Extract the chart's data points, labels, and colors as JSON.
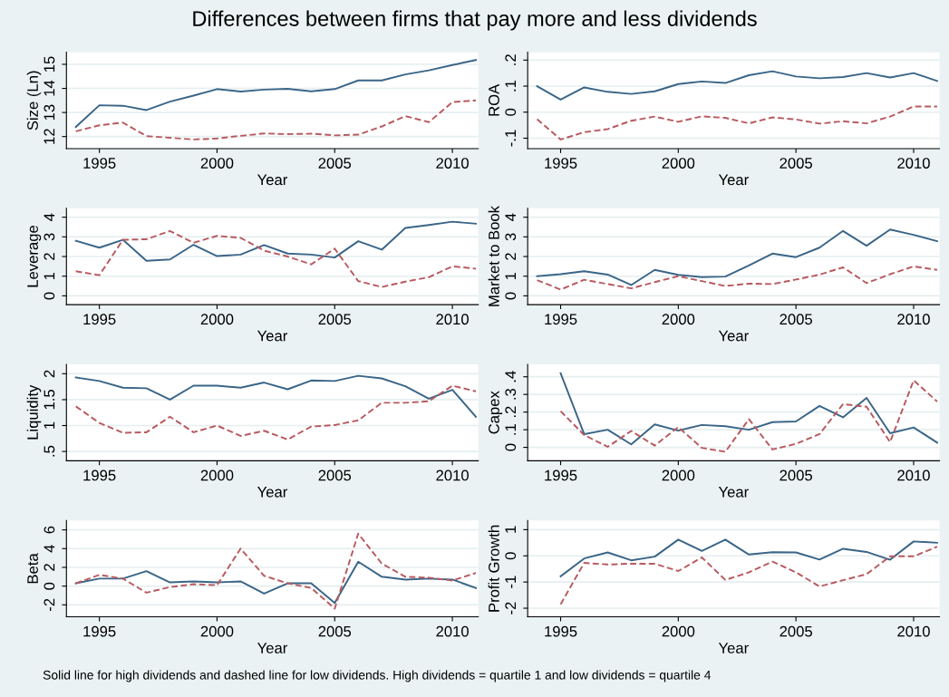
{
  "chart_data": [
    {
      "type": "line",
      "title": "Differences between firms that pay more and less dividends",
      "xlabel": "Year",
      "ylabel": "Size (Ln)",
      "x": [
        1994,
        1995,
        1996,
        1997,
        1998,
        1999,
        2000,
        2001,
        2002,
        2003,
        2004,
        2005,
        2006,
        2007,
        2008,
        2009,
        2010,
        2011
      ],
      "xlim": [
        1993.6,
        2011.1
      ],
      "xticks": [
        1995,
        2000,
        2005,
        2010
      ],
      "ylim": [
        11.5,
        15.5
      ],
      "yticks": [
        12,
        13,
        14,
        15
      ],
      "grid": "y",
      "series": [
        {
          "color": "#3a6587",
          "line_style": "solid",
          "values": [
            12.4,
            13.3,
            13.28,
            13.1,
            13.45,
            13.7,
            13.97,
            13.87,
            13.95,
            13.98,
            13.88,
            13.97,
            14.33,
            14.33,
            14.58,
            14.75,
            14.97,
            15.18
          ]
        },
        {
          "color": "#b85a5f",
          "line_style": "dashed",
          "values": [
            12.22,
            12.47,
            12.58,
            12.02,
            11.95,
            11.88,
            11.92,
            12.03,
            12.13,
            12.1,
            12.12,
            12.05,
            12.08,
            12.42,
            12.85,
            12.6,
            13.43,
            13.5
          ]
        }
      ]
    },
    {
      "type": "line",
      "xlabel": "Year",
      "ylabel": "ROA",
      "x": [
        1994,
        1995,
        1996,
        1997,
        1998,
        1999,
        2000,
        2001,
        2002,
        2003,
        2004,
        2005,
        2006,
        2007,
        2008,
        2009,
        2010,
        2011
      ],
      "xlim": [
        1993.6,
        2011.1
      ],
      "xticks": [
        1995,
        2000,
        2005,
        2010
      ],
      "ylim": [
        -0.14,
        0.23
      ],
      "yticks": [
        {
          "value": -0.1,
          "label": "-.1"
        },
        0,
        {
          "value": 0.1,
          "label": ".1"
        },
        {
          "value": 0.2,
          "label": ".2"
        }
      ],
      "grid": "y",
      "series": [
        {
          "color": "#3a6587",
          "line_style": "solid",
          "values": [
            0.1,
            0.048,
            0.095,
            0.078,
            0.07,
            0.08,
            0.108,
            0.118,
            0.112,
            0.142,
            0.157,
            0.137,
            0.13,
            0.135,
            0.15,
            0.133,
            0.15,
            0.12
          ]
        },
        {
          "color": "#b85a5f",
          "line_style": "dashed",
          "values": [
            -0.027,
            -0.105,
            -0.077,
            -0.065,
            -0.033,
            -0.017,
            -0.037,
            -0.016,
            -0.022,
            -0.043,
            -0.02,
            -0.028,
            -0.044,
            -0.035,
            -0.043,
            -0.017,
            0.022,
            0.022
          ]
        }
      ]
    },
    {
      "type": "line",
      "xlabel": "Year",
      "ylabel": "Leverage",
      "x": [
        1994,
        1995,
        1996,
        1997,
        1998,
        1999,
        2000,
        2001,
        2002,
        2003,
        2004,
        2005,
        2006,
        2007,
        2008,
        2009,
        2010,
        2011
      ],
      "xlim": [
        1993.6,
        2011.1
      ],
      "xticks": [
        1995,
        2000,
        2005,
        2010
      ],
      "ylim": [
        -0.45,
        4.45
      ],
      "yticks": [
        0,
        1,
        2,
        3,
        4
      ],
      "grid": "y",
      "series": [
        {
          "color": "#3a6587",
          "line_style": "solid",
          "values": [
            2.8,
            2.45,
            2.85,
            1.78,
            1.85,
            2.6,
            2.02,
            2.1,
            2.58,
            2.15,
            2.1,
            1.95,
            2.78,
            2.35,
            3.45,
            3.6,
            3.77,
            3.67
          ]
        },
        {
          "color": "#b85a5f",
          "line_style": "dashed",
          "values": [
            1.25,
            1.05,
            2.85,
            2.88,
            3.3,
            2.7,
            3.05,
            2.95,
            2.3,
            2.0,
            1.6,
            2.4,
            0.75,
            0.45,
            0.72,
            0.95,
            1.5,
            1.38
          ]
        }
      ]
    },
    {
      "type": "line",
      "xlabel": "Year",
      "ylabel": "Market to Book",
      "x": [
        1994,
        1995,
        1996,
        1997,
        1998,
        1999,
        2000,
        2001,
        2002,
        2003,
        2004,
        2005,
        2006,
        2007,
        2008,
        2009,
        2010,
        2011
      ],
      "xlim": [
        1993.6,
        2011.1
      ],
      "xticks": [
        1995,
        2000,
        2005,
        2010
      ],
      "ylim": [
        -0.45,
        4.45
      ],
      "yticks": [
        0,
        1,
        2,
        3,
        4
      ],
      "grid": "y",
      "series": [
        {
          "color": "#3a6587",
          "line_style": "solid",
          "values": [
            1.0,
            1.1,
            1.25,
            1.08,
            0.55,
            1.32,
            1.07,
            0.95,
            0.98,
            1.55,
            2.15,
            1.97,
            2.45,
            3.3,
            2.55,
            3.37,
            3.1,
            2.78
          ]
        },
        {
          "color": "#b85a5f",
          "line_style": "dashed",
          "values": [
            0.8,
            0.32,
            0.82,
            0.6,
            0.38,
            0.7,
            1.0,
            0.75,
            0.5,
            0.62,
            0.6,
            0.83,
            1.08,
            1.45,
            0.65,
            1.1,
            1.5,
            1.32
          ]
        }
      ]
    },
    {
      "type": "line",
      "xlabel": "Year",
      "ylabel": "Liquidity",
      "x": [
        1994,
        1995,
        1996,
        1997,
        1998,
        1999,
        2000,
        2001,
        2002,
        2003,
        2004,
        2005,
        2006,
        2007,
        2008,
        2009,
        2010,
        2011
      ],
      "xlim": [
        1993.6,
        2011.1
      ],
      "xticks": [
        1995,
        2000,
        2005,
        2010
      ],
      "ylim": [
        0.32,
        2.18
      ],
      "yticks": [
        {
          "value": 0.5,
          "label": ".5"
        },
        1,
        1.5,
        2
      ],
      "grid": "y",
      "series": [
        {
          "color": "#3a6587",
          "line_style": "solid",
          "values": [
            1.93,
            1.86,
            1.73,
            1.72,
            1.5,
            1.77,
            1.77,
            1.73,
            1.83,
            1.7,
            1.87,
            1.86,
            1.96,
            1.91,
            1.76,
            1.52,
            1.69,
            1.17
          ]
        },
        {
          "color": "#b85a5f",
          "line_style": "dashed",
          "values": [
            1.37,
            1.05,
            0.86,
            0.87,
            1.17,
            0.87,
            1.0,
            0.8,
            0.9,
            0.73,
            0.98,
            1.01,
            1.1,
            1.44,
            1.44,
            1.47,
            1.77,
            1.66
          ]
        }
      ]
    },
    {
      "type": "line",
      "xlabel": "Year",
      "ylabel": "Capex",
      "x": [
        1995,
        1996,
        1997,
        1998,
        1999,
        2000,
        2001,
        2002,
        2003,
        2004,
        2005,
        2006,
        2007,
        2008,
        2009,
        2010,
        2011
      ],
      "xlim": [
        1993.6,
        2011.1
      ],
      "xticks": [
        1995,
        2000,
        2005,
        2010
      ],
      "ylim": [
        -0.076,
        0.47
      ],
      "yticks": [
        0,
        {
          "value": 0.1,
          "label": ".1"
        },
        {
          "value": 0.2,
          "label": ".2"
        },
        {
          "value": 0.3,
          "label": ".3"
        },
        {
          "value": 0.4,
          "label": ".4"
        }
      ],
      "grid": "y",
      "series": [
        {
          "color": "#3a6587",
          "line_style": "solid",
          "values": [
            0.42,
            0.075,
            0.1,
            0.017,
            0.13,
            0.095,
            0.127,
            0.12,
            0.1,
            0.143,
            0.147,
            0.235,
            0.17,
            0.28,
            0.08,
            0.113,
            0.027
          ]
        },
        {
          "color": "#b85a5f",
          "line_style": "dashed",
          "values": [
            0.205,
            0.07,
            0.003,
            0.093,
            0.01,
            0.115,
            -0.003,
            -0.025,
            0.16,
            -0.012,
            0.02,
            0.075,
            0.245,
            0.23,
            0.03,
            0.38,
            0.26
          ]
        }
      ]
    },
    {
      "type": "line",
      "xlabel": "Year",
      "ylabel": "Beta",
      "x": [
        1994,
        1995,
        1996,
        1997,
        1998,
        1999,
        2000,
        2001,
        2002,
        2003,
        2004,
        2005,
        2006,
        2007,
        2008,
        2009,
        2010,
        2011
      ],
      "xlim": [
        1993.6,
        2011.1
      ],
      "xticks": [
        1995,
        2000,
        2005,
        2010
      ],
      "ylim": [
        -3.28,
        7.0
      ],
      "yticks": [
        -2,
        0,
        2,
        4,
        6
      ],
      "grid": "y",
      "series": [
        {
          "color": "#3a6587",
          "line_style": "solid",
          "values": [
            0.3,
            0.8,
            0.8,
            1.6,
            0.4,
            0.5,
            0.4,
            0.5,
            -0.8,
            0.3,
            0.3,
            -1.8,
            2.6,
            1.0,
            0.7,
            0.8,
            0.7,
            -0.2
          ]
        },
        {
          "color": "#b85a5f",
          "line_style": "dashed",
          "values": [
            0.3,
            1.2,
            0.8,
            -0.7,
            -0.1,
            0.2,
            0.1,
            4.0,
            1.1,
            0.3,
            -0.2,
            -2.4,
            5.6,
            2.4,
            1.0,
            0.9,
            0.6,
            1.4
          ]
        }
      ]
    },
    {
      "type": "line",
      "xlabel": "Year",
      "ylabel": "Profit Growth",
      "x": [
        1995,
        1996,
        1997,
        1998,
        1999,
        2000,
        2001,
        2002,
        2003,
        2004,
        2005,
        2006,
        2007,
        2008,
        2009,
        2010,
        2011
      ],
      "xlim": [
        1993.6,
        2011.1
      ],
      "xticks": [
        1995,
        2000,
        2005,
        2010
      ],
      "ylim": [
        -2.33,
        1.35
      ],
      "yticks": [
        -2,
        -1,
        0,
        1
      ],
      "grid": "y",
      "annotations": [
        "Solid line for high dividends and dashed line for low dividends. High dividends = quartile 1 and low dividends = quartile 4"
      ],
      "series": [
        {
          "color": "#3a6587",
          "line_style": "solid",
          "values": [
            -0.78,
            -0.1,
            0.13,
            -0.17,
            -0.03,
            0.62,
            0.19,
            0.62,
            0.05,
            0.14,
            0.13,
            -0.14,
            0.27,
            0.15,
            -0.15,
            0.55,
            0.5
          ]
        },
        {
          "color": "#b85a5f",
          "line_style": "dashed",
          "values": [
            -1.85,
            -0.27,
            -0.33,
            -0.3,
            -0.3,
            -0.58,
            -0.06,
            -0.92,
            -0.63,
            -0.22,
            -0.63,
            -1.17,
            -0.93,
            -0.7,
            -0.02,
            -0.02,
            0.35
          ]
        }
      ]
    }
  ]
}
